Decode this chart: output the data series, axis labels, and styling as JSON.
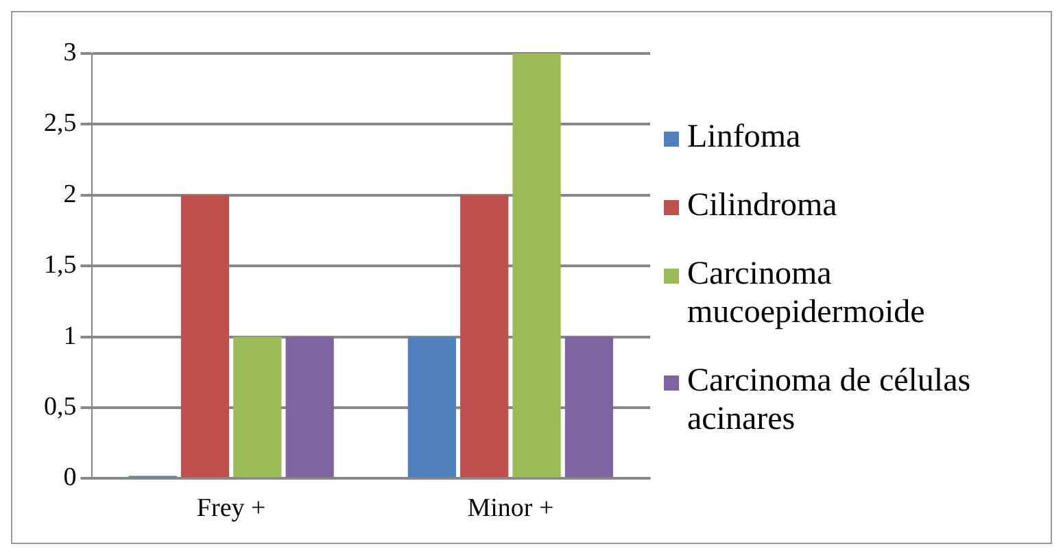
{
  "chart_data": {
    "type": "bar",
    "categories": [
      "Frey +",
      "Minor +"
    ],
    "series": [
      {
        "name": "Linfoma",
        "color": "#4f81bd",
        "values": [
          0,
          1
        ]
      },
      {
        "name": "Cilindroma",
        "color": "#c0504d",
        "values": [
          2,
          2
        ]
      },
      {
        "name": "Carcinoma mucoepidermoide",
        "color": "#9bbb59",
        "values": [
          1,
          3
        ]
      },
      {
        "name": "Carcinoma de células acinares",
        "color": "#8064a2",
        "values": [
          1,
          1
        ]
      }
    ],
    "ylim": [
      0,
      3
    ],
    "yticks": [
      0,
      {
        "value": 0.5,
        "label": "0,5"
      },
      1,
      {
        "value": 1.5,
        "label": "1,5"
      },
      2,
      {
        "value": 2.5,
        "label": "2,5"
      },
      3
    ],
    "grid": "y",
    "legend": "right"
  }
}
